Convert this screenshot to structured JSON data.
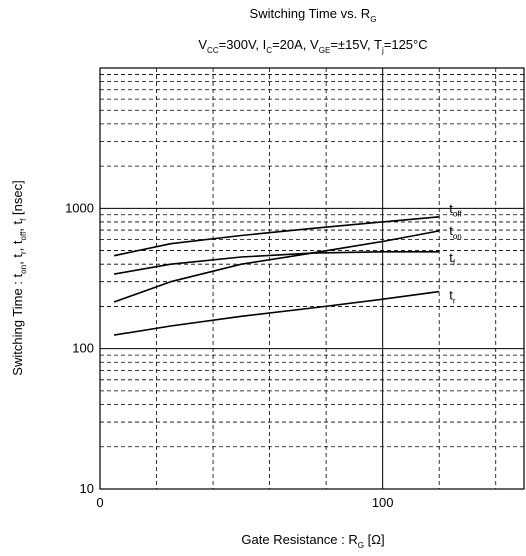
{
  "chart_data": {
    "type": "line",
    "title": "Switching Time vs. R",
    "title_sub": "G",
    "conditions": [
      {
        "main": "V",
        "sub": "CC",
        "rest": "=300V, "
      },
      {
        "main": "I",
        "sub": "C",
        "rest": "=20A, "
      },
      {
        "main": "V",
        "sub": "GE",
        "rest": "=±15V, "
      },
      {
        "main": "T",
        "sub": "j",
        "rest": "=125°C"
      }
    ],
    "xlabel": {
      "main": "Gate Resistance  : R",
      "sub": "G",
      "rest": "  [Ω]"
    },
    "ylabel": {
      "parts": [
        {
          "main": "Switching Time :  t",
          "sub": "on"
        },
        {
          "main": ", t",
          "sub": "r"
        },
        {
          "main": ", t",
          "sub": "off"
        },
        {
          "main": ", t",
          "sub": "f"
        },
        {
          "main": "  [nsec]",
          "sub": ""
        }
      ]
    },
    "x_scale": "linear",
    "y_scale": "log",
    "xlim": [
      0,
      150
    ],
    "ylim": [
      10,
      10000
    ],
    "x_ticks": [
      0,
      100
    ],
    "y_ticks": [
      10,
      100,
      1000
    ],
    "x_tick_labels": [
      "0",
      "100"
    ],
    "y_tick_labels": [
      "10",
      "100",
      "1000"
    ],
    "x_grid_step": 20,
    "grid": true,
    "series": [
      {
        "name": "t",
        "sub": "off",
        "x": [
          5,
          25,
          50,
          75,
          100,
          120
        ],
        "y": [
          460,
          560,
          640,
          720,
          800,
          870
        ]
      },
      {
        "name": "t",
        "sub": "on",
        "x": [
          5,
          25,
          50,
          75,
          100,
          120
        ],
        "y": [
          215,
          300,
          400,
          480,
          580,
          690
        ]
      },
      {
        "name": "t",
        "sub": "f",
        "x": [
          5,
          25,
          50,
          75,
          100,
          120
        ],
        "y": [
          340,
          400,
          450,
          480,
          490,
          490
        ]
      },
      {
        "name": "t",
        "sub": "r",
        "x": [
          5,
          25,
          50,
          75,
          100,
          120
        ],
        "y": [
          125,
          145,
          170,
          195,
          225,
          255
        ]
      }
    ],
    "line_color": "#000000",
    "grid_color": "#000000"
  }
}
